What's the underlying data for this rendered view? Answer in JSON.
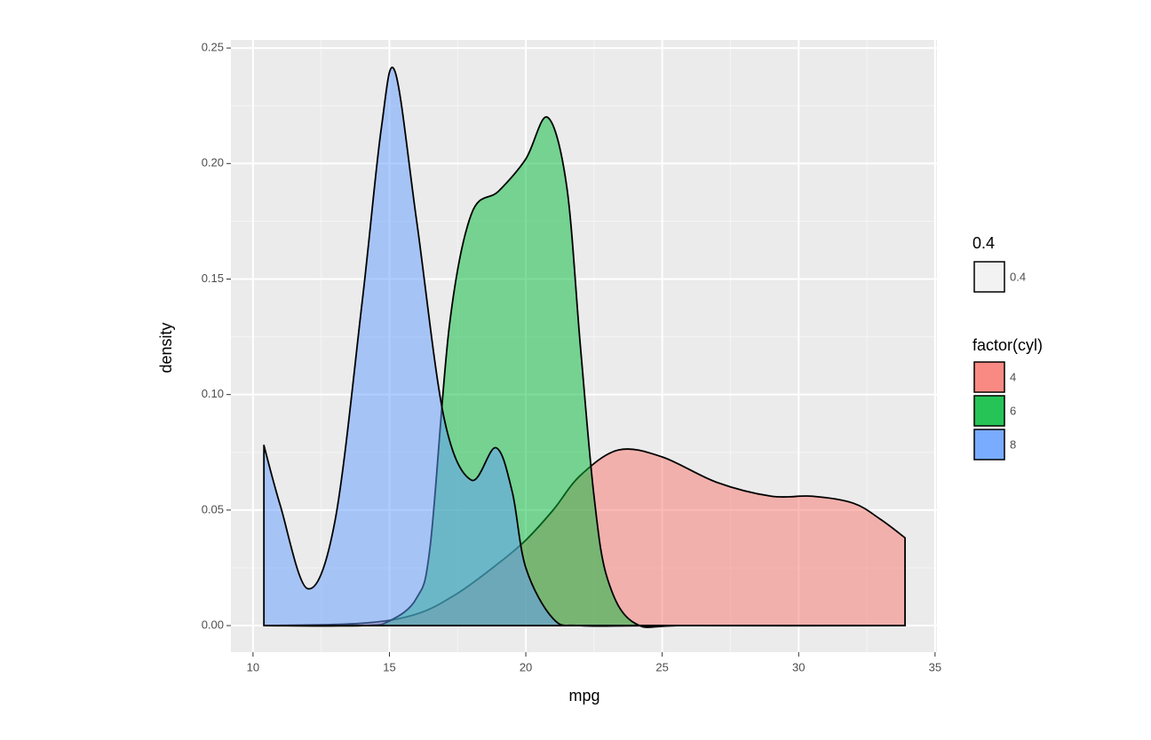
{
  "chart_data": {
    "type": "density",
    "x_label": "mpg",
    "y_label": "density",
    "xlim": [
      9.19,
      35.07
    ],
    "ylim": [
      -0.0115,
      0.2535
    ],
    "xticks": [
      10,
      15,
      20,
      25,
      30,
      35
    ],
    "yticks": [
      {
        "value": 0,
        "label": "0.00"
      },
      {
        "value": 0.05,
        "label": "0.05"
      },
      {
        "value": 0.1,
        "label": "0.10"
      },
      {
        "value": 0.15,
        "label": "0.15"
      },
      {
        "value": 0.2,
        "label": "0.20"
      },
      {
        "value": 0.25,
        "label": "0.25"
      }
    ],
    "grid": true,
    "fill_opacity": 0.5,
    "alpha_legend": {
      "title": "0.4",
      "items": [
        "0.4"
      ],
      "color": "#f2f2f2"
    },
    "legend_title": "factor(cyl)",
    "series": [
      {
        "name": "4",
        "color": "#F8766D",
        "x": [
          10.4,
          14,
          16,
          17.5,
          19,
          20,
          21,
          22,
          23.4,
          25,
          27,
          29,
          30.5,
          32,
          33,
          33.9
        ],
        "y": [
          0,
          0.001,
          0.005,
          0.014,
          0.027,
          0.037,
          0.05,
          0.065,
          0.076,
          0.073,
          0.062,
          0.056,
          0.056,
          0.053,
          0.046,
          0.038
        ]
      },
      {
        "name": "6",
        "color": "#00BA38",
        "x": [
          10.4,
          14,
          15,
          16,
          16.5,
          17.2,
          18,
          19,
          20,
          20.8,
          21.5,
          22,
          22.5,
          23,
          24,
          26,
          33.9
        ],
        "y": [
          0,
          0,
          0.002,
          0.012,
          0.035,
          0.13,
          0.178,
          0.188,
          0.202,
          0.22,
          0.19,
          0.121,
          0.056,
          0.02,
          0.001,
          0,
          0
        ]
      },
      {
        "name": "8",
        "color": "#619CFF",
        "x": [
          10.4,
          11,
          12,
          13,
          14,
          14.7,
          15.2,
          16,
          17,
          18,
          18.9,
          19.5,
          20,
          21,
          22,
          25,
          33.9
        ],
        "y": [
          0.078,
          0.052,
          0.016,
          0.045,
          0.14,
          0.215,
          0.24,
          0.175,
          0.09,
          0.063,
          0.077,
          0.058,
          0.025,
          0.003,
          0,
          0,
          0
        ]
      }
    ]
  }
}
